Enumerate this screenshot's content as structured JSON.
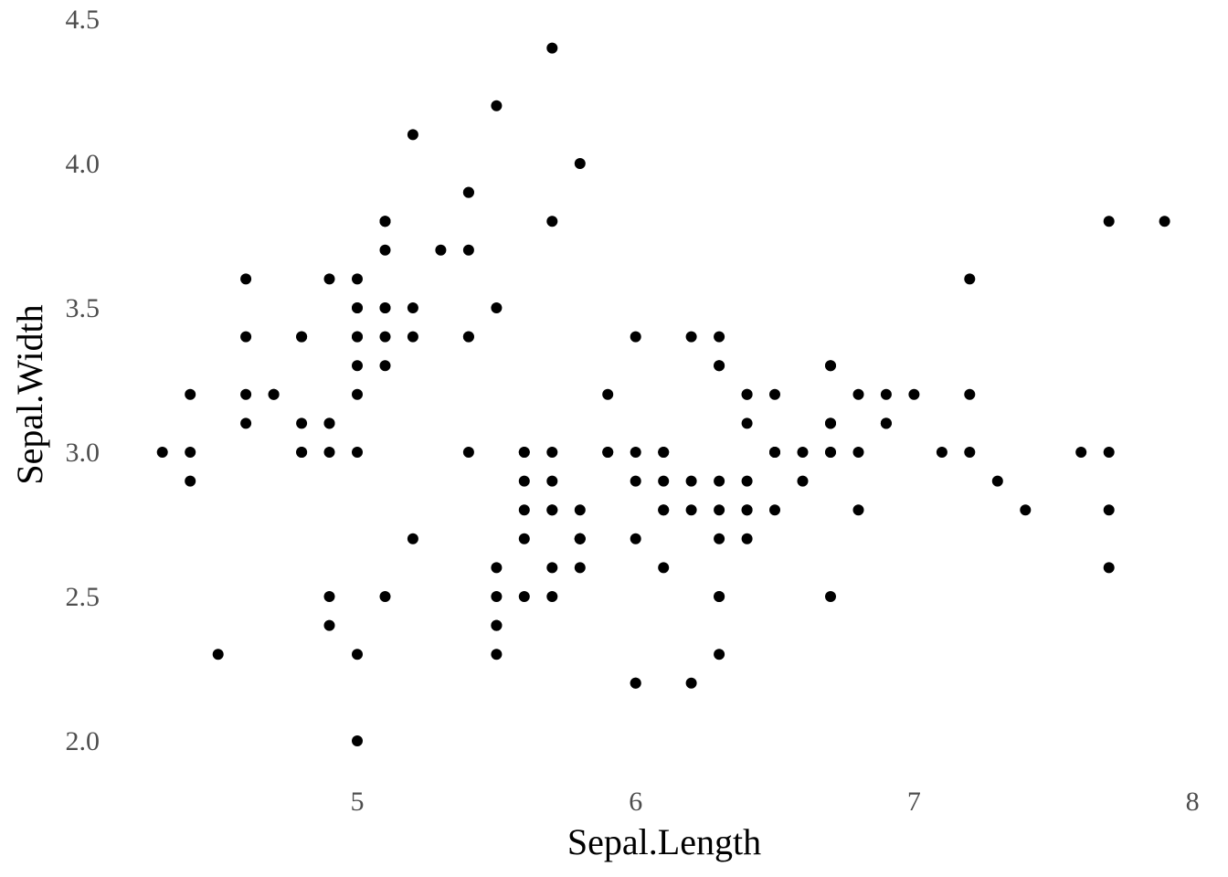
{
  "chart_data": {
    "type": "scatter",
    "title": "",
    "xlabel": "Sepal.Length",
    "ylabel": "Sepal.Width",
    "xlim": [
      4.3,
      7.9
    ],
    "ylim": [
      2.0,
      4.4
    ],
    "x_ticks": [
      5,
      6,
      7,
      8
    ],
    "x_tick_labels": [
      "5",
      "6",
      "7",
      "8"
    ],
    "y_ticks": [
      2.0,
      2.5,
      3.0,
      3.5,
      4.0,
      4.5
    ],
    "y_tick_labels": [
      "2.0",
      "2.5",
      "3.0",
      "3.5",
      "4.0",
      "4.5"
    ],
    "grid": false,
    "legend": "none",
    "point_color": "#000000",
    "points": [
      [
        5.1,
        3.5
      ],
      [
        4.9,
        3.0
      ],
      [
        4.7,
        3.2
      ],
      [
        4.6,
        3.1
      ],
      [
        5.0,
        3.6
      ],
      [
        5.4,
        3.9
      ],
      [
        4.6,
        3.4
      ],
      [
        5.0,
        3.4
      ],
      [
        4.4,
        2.9
      ],
      [
        4.9,
        3.1
      ],
      [
        5.4,
        3.7
      ],
      [
        4.8,
        3.4
      ],
      [
        4.8,
        3.0
      ],
      [
        4.3,
        3.0
      ],
      [
        5.8,
        4.0
      ],
      [
        5.7,
        4.4
      ],
      [
        5.4,
        3.9
      ],
      [
        5.1,
        3.5
      ],
      [
        5.7,
        3.8
      ],
      [
        5.1,
        3.8
      ],
      [
        5.4,
        3.4
      ],
      [
        5.1,
        3.7
      ],
      [
        4.6,
        3.6
      ],
      [
        5.1,
        3.3
      ],
      [
        4.8,
        3.4
      ],
      [
        5.0,
        3.0
      ],
      [
        5.0,
        3.4
      ],
      [
        5.2,
        3.5
      ],
      [
        5.2,
        3.4
      ],
      [
        4.7,
        3.2
      ],
      [
        4.8,
        3.1
      ],
      [
        5.4,
        3.4
      ],
      [
        5.2,
        4.1
      ],
      [
        5.5,
        4.2
      ],
      [
        4.9,
        3.1
      ],
      [
        5.0,
        3.2
      ],
      [
        5.5,
        3.5
      ],
      [
        4.9,
        3.6
      ],
      [
        4.4,
        3.0
      ],
      [
        5.1,
        3.4
      ],
      [
        5.0,
        3.5
      ],
      [
        4.5,
        2.3
      ],
      [
        4.4,
        3.2
      ],
      [
        5.0,
        3.5
      ],
      [
        5.1,
        3.8
      ],
      [
        4.8,
        3.0
      ],
      [
        5.1,
        3.8
      ],
      [
        4.6,
        3.2
      ],
      [
        5.3,
        3.7
      ],
      [
        5.0,
        3.3
      ],
      [
        7.0,
        3.2
      ],
      [
        6.4,
        3.2
      ],
      [
        6.9,
        3.1
      ],
      [
        5.5,
        2.3
      ],
      [
        6.5,
        2.8
      ],
      [
        5.7,
        2.8
      ],
      [
        6.3,
        3.3
      ],
      [
        4.9,
        2.4
      ],
      [
        6.6,
        2.9
      ],
      [
        5.2,
        2.7
      ],
      [
        5.0,
        2.0
      ],
      [
        5.9,
        3.0
      ],
      [
        6.0,
        2.2
      ],
      [
        6.1,
        2.9
      ],
      [
        5.6,
        2.9
      ],
      [
        6.7,
        3.1
      ],
      [
        5.6,
        3.0
      ],
      [
        5.8,
        2.7
      ],
      [
        6.2,
        2.2
      ],
      [
        5.6,
        2.5
      ],
      [
        5.9,
        3.2
      ],
      [
        6.1,
        2.8
      ],
      [
        6.3,
        2.5
      ],
      [
        6.1,
        2.8
      ],
      [
        6.4,
        2.9
      ],
      [
        6.6,
        3.0
      ],
      [
        6.8,
        2.8
      ],
      [
        6.7,
        3.0
      ],
      [
        6.0,
        2.9
      ],
      [
        5.7,
        2.6
      ],
      [
        5.5,
        2.4
      ],
      [
        5.5,
        2.4
      ],
      [
        5.8,
        2.7
      ],
      [
        6.0,
        2.7
      ],
      [
        5.4,
        3.0
      ],
      [
        6.0,
        3.4
      ],
      [
        6.7,
        3.1
      ],
      [
        6.3,
        2.3
      ],
      [
        5.6,
        3.0
      ],
      [
        5.5,
        2.5
      ],
      [
        5.5,
        2.6
      ],
      [
        6.1,
        3.0
      ],
      [
        5.8,
        2.6
      ],
      [
        5.0,
        2.3
      ],
      [
        5.6,
        2.7
      ],
      [
        5.7,
        3.0
      ],
      [
        5.7,
        2.9
      ],
      [
        6.2,
        2.9
      ],
      [
        5.1,
        2.5
      ],
      [
        5.7,
        2.8
      ],
      [
        6.3,
        3.3
      ],
      [
        5.8,
        2.7
      ],
      [
        7.1,
        3.0
      ],
      [
        6.3,
        2.9
      ],
      [
        6.5,
        3.0
      ],
      [
        7.6,
        3.0
      ],
      [
        4.9,
        2.5
      ],
      [
        7.3,
        2.9
      ],
      [
        6.7,
        2.5
      ],
      [
        7.2,
        3.6
      ],
      [
        6.5,
        3.2
      ],
      [
        6.4,
        2.7
      ],
      [
        6.8,
        3.0
      ],
      [
        5.7,
        2.5
      ],
      [
        5.8,
        2.8
      ],
      [
        6.4,
        3.2
      ],
      [
        6.5,
        3.0
      ],
      [
        7.7,
        3.8
      ],
      [
        7.7,
        2.6
      ],
      [
        6.0,
        2.2
      ],
      [
        6.9,
        3.2
      ],
      [
        5.6,
        2.8
      ],
      [
        7.7,
        2.8
      ],
      [
        6.3,
        2.7
      ],
      [
        6.7,
        3.3
      ],
      [
        7.2,
        3.2
      ],
      [
        6.2,
        2.8
      ],
      [
        6.1,
        3.0
      ],
      [
        6.4,
        2.8
      ],
      [
        7.2,
        3.0
      ],
      [
        7.4,
        2.8
      ],
      [
        7.9,
        3.8
      ],
      [
        6.4,
        2.8
      ],
      [
        6.3,
        2.8
      ],
      [
        6.1,
        2.6
      ],
      [
        7.7,
        3.0
      ],
      [
        6.3,
        3.4
      ],
      [
        6.4,
        3.1
      ],
      [
        6.0,
        3.0
      ],
      [
        6.9,
        3.1
      ],
      [
        6.7,
        3.1
      ],
      [
        6.9,
        3.1
      ],
      [
        5.8,
        2.7
      ],
      [
        6.8,
        3.2
      ],
      [
        6.7,
        3.3
      ],
      [
        6.7,
        3.0
      ],
      [
        6.3,
        2.5
      ],
      [
        6.5,
        3.0
      ],
      [
        6.2,
        3.4
      ],
      [
        5.9,
        3.0
      ]
    ]
  }
}
